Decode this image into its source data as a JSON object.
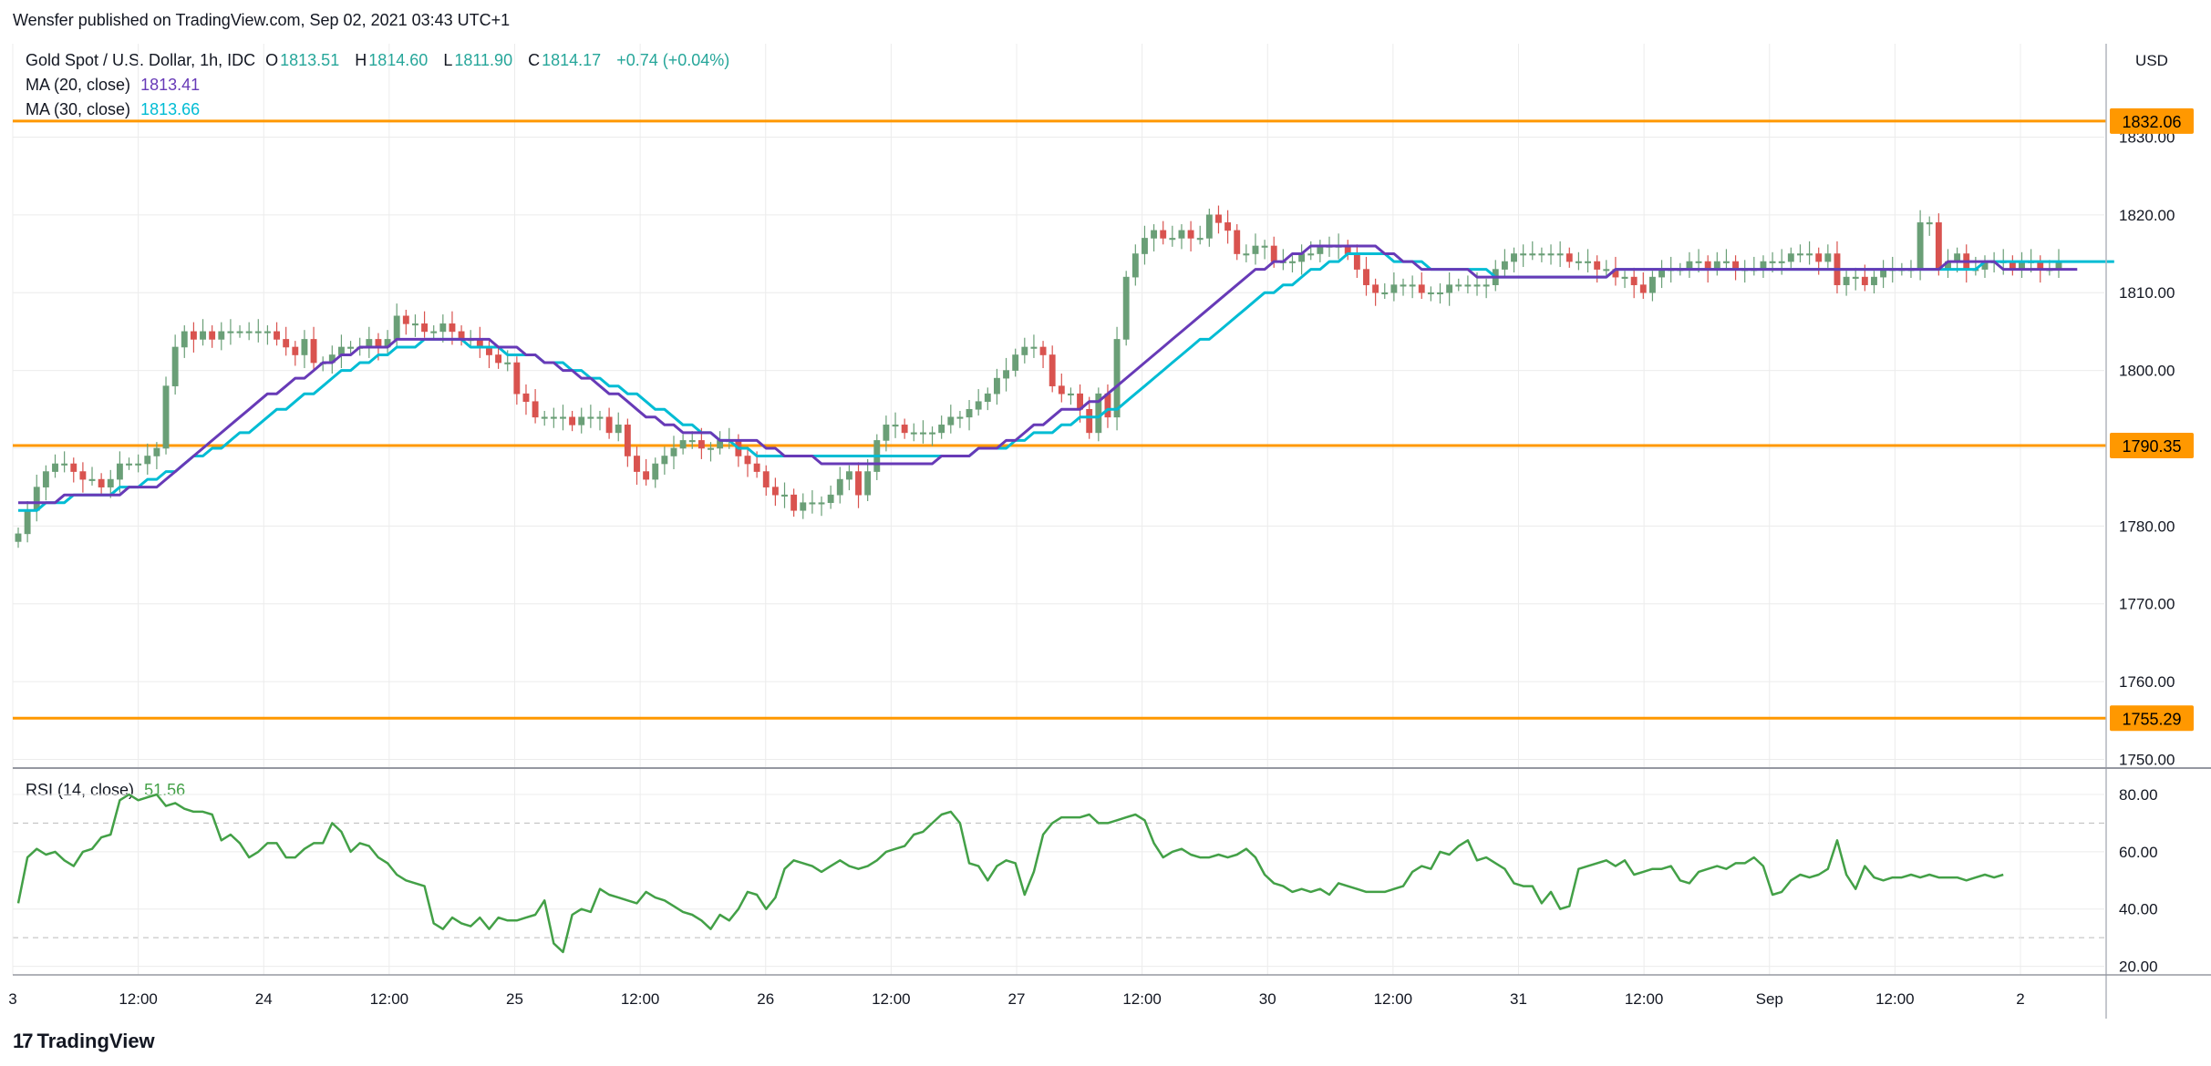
{
  "credit": "Wensfer published on TradingView.com, Sep 02, 2021 03:43 UTC+1",
  "brand": "TradingView",
  "legend": {
    "symbol": "Gold Spot / U.S. Dollar, 1h, IDC",
    "open_label": "O",
    "open": "1813.51",
    "high_label": "H",
    "high": "1814.60",
    "low_label": "L",
    "low": "1811.90",
    "close_label": "C",
    "close": "1814.17",
    "change": "+0.74 (+0.04%)",
    "ma20_label": "MA (20, close)",
    "ma20_value": "1813.41",
    "ma30_label": "MA (30, close)",
    "ma30_value": "1813.66",
    "rsi_label": "RSI (14, close)",
    "rsi_value": "51.56"
  },
  "colors": {
    "up": "#6a9f77",
    "down": "#d9534f",
    "ma20": "#673ab7",
    "ma30": "#00bcd4",
    "rsi": "#43a047",
    "level": "#ff9800",
    "grid": "#ececec",
    "legend_green": "#26a69a"
  },
  "chart_data": [
    {
      "type": "candlestick",
      "currency": "USD",
      "y_ticks": [
        "1830.00",
        "1820.00",
        "1810.00",
        "1800.00",
        "1790.00",
        "1780.00",
        "1770.00",
        "1760.00",
        "1750.00"
      ],
      "y_tick_values": [
        1830,
        1820,
        1810,
        1800,
        1790,
        1780,
        1770,
        1760,
        1750
      ],
      "ylim": [
        1749,
        1842
      ],
      "x_ticks": [
        "3",
        "12:00",
        "24",
        "12:00",
        "25",
        "12:00",
        "26",
        "12:00",
        "27",
        "12:00",
        "30",
        "12:00",
        "31",
        "12:00",
        "Sep",
        "12:00",
        "2"
      ],
      "horizontal_levels": [
        {
          "label": "1832.06",
          "value": 1832.06
        },
        {
          "label": "1790.35",
          "value": 1790.35
        },
        {
          "label": "1755.29",
          "value": 1755.29
        }
      ],
      "closes": [
        1779,
        1782,
        1785,
        1787,
        1788,
        1788,
        1787,
        1786,
        1786,
        1785,
        1786,
        1788,
        1788,
        1788,
        1789,
        1790,
        1798,
        1803,
        1805,
        1804,
        1805,
        1804,
        1805,
        1805,
        1805,
        1805,
        1805,
        1805,
        1804,
        1803,
        1802,
        1804,
        1801,
        1801,
        1802,
        1803,
        1803,
        1803,
        1804,
        1803,
        1804,
        1807,
        1806,
        1806,
        1805,
        1805,
        1806,
        1805,
        1804,
        1804,
        1803,
        1802,
        1801,
        1801,
        1797,
        1796,
        1794,
        1794,
        1794,
        1794,
        1793,
        1794,
        1794,
        1794,
        1792,
        1793,
        1789,
        1787,
        1786,
        1788,
        1789,
        1790,
        1791,
        1791,
        1790,
        1790,
        1791,
        1791,
        1789,
        1788,
        1787,
        1785,
        1784,
        1784,
        1782,
        1783,
        1783,
        1783,
        1784,
        1786,
        1787,
        1784,
        1787,
        1791,
        1793,
        1793,
        1792,
        1792,
        1792,
        1792,
        1793,
        1794,
        1794,
        1795,
        1796,
        1797,
        1799,
        1800,
        1802,
        1803,
        1803,
        1802,
        1798,
        1797,
        1797,
        1795,
        1792,
        1797,
        1794,
        1804,
        1812,
        1815,
        1817,
        1818,
        1817,
        1817,
        1818,
        1817,
        1817,
        1820,
        1819,
        1818,
        1815,
        1815,
        1816,
        1816,
        1814,
        1814,
        1814,
        1815,
        1815,
        1816,
        1816,
        1816,
        1815,
        1813,
        1811,
        1810,
        1810,
        1811,
        1811,
        1811,
        1810,
        1810,
        1810,
        1811,
        1811,
        1811,
        1811,
        1811,
        1813,
        1814,
        1815,
        1815,
        1815,
        1815,
        1815,
        1815,
        1814,
        1814,
        1814,
        1813,
        1813,
        1812,
        1812,
        1811,
        1810,
        1812,
        1813,
        1813,
        1813,
        1814,
        1814,
        1813,
        1814,
        1814,
        1813,
        1813,
        1813,
        1814,
        1814,
        1814,
        1815,
        1815,
        1815,
        1814,
        1815,
        1811,
        1812,
        1812,
        1811,
        1812,
        1813,
        1813,
        1813,
        1813,
        1819,
        1819,
        1813,
        1814,
        1815,
        1813,
        1813,
        1814,
        1814,
        1814,
        1813,
        1814,
        1814,
        1813,
        1813,
        1814
      ],
      "ma20": [
        1783,
        1783,
        1783,
        1783,
        1783,
        1784,
        1784,
        1784,
        1784,
        1784,
        1784,
        1784,
        1785,
        1785,
        1785,
        1785,
        1786,
        1787,
        1788,
        1789,
        1790,
        1791,
        1792,
        1793,
        1794,
        1795,
        1796,
        1797,
        1797,
        1798,
        1799,
        1799,
        1800,
        1801,
        1801,
        1802,
        1802,
        1803,
        1803,
        1803,
        1803,
        1804,
        1804,
        1804,
        1804,
        1804,
        1804,
        1804,
        1804,
        1804,
        1804,
        1804,
        1803,
        1803,
        1803,
        1802,
        1802,
        1801,
        1801,
        1800,
        1800,
        1799,
        1799,
        1798,
        1797,
        1797,
        1796,
        1795,
        1794,
        1794,
        1793,
        1793,
        1792,
        1792,
        1792,
        1792,
        1791,
        1791,
        1791,
        1791,
        1791,
        1790,
        1790,
        1789,
        1789,
        1789,
        1789,
        1788,
        1788,
        1788,
        1788,
        1788,
        1788,
        1788,
        1788,
        1788,
        1788,
        1788,
        1788,
        1788,
        1789,
        1789,
        1789,
        1789,
        1790,
        1790,
        1790,
        1791,
        1791,
        1792,
        1793,
        1793,
        1794,
        1795,
        1795,
        1795,
        1796,
        1796,
        1797,
        1798,
        1799,
        1800,
        1801,
        1802,
        1803,
        1804,
        1805,
        1806,
        1807,
        1808,
        1809,
        1810,
        1811,
        1812,
        1813,
        1813,
        1814,
        1814,
        1815,
        1815,
        1816,
        1816,
        1816,
        1816,
        1816,
        1816,
        1816,
        1816,
        1815,
        1815,
        1814,
        1814,
        1813,
        1813,
        1813,
        1813,
        1813,
        1813,
        1812,
        1812,
        1812,
        1812,
        1812,
        1812,
        1812,
        1812,
        1812,
        1812,
        1812,
        1812,
        1812,
        1812,
        1812,
        1813,
        1813,
        1813,
        1813,
        1813,
        1813,
        1813,
        1813,
        1813,
        1813,
        1813,
        1813,
        1813,
        1813,
        1813,
        1813,
        1813,
        1813,
        1813,
        1813,
        1813,
        1813,
        1813,
        1813,
        1813,
        1813,
        1813,
        1813,
        1813,
        1813,
        1813,
        1813,
        1813,
        1813,
        1813,
        1813,
        1814,
        1814,
        1814,
        1814,
        1814,
        1814,
        1813,
        1813,
        1813,
        1813,
        1813,
        1813,
        1813,
        1813,
        1813
      ],
      "ma30": [
        1782,
        1782,
        1782,
        1783,
        1783,
        1783,
        1784,
        1784,
        1784,
        1784,
        1784,
        1785,
        1785,
        1785,
        1786,
        1786,
        1787,
        1787,
        1788,
        1789,
        1789,
        1790,
        1790,
        1791,
        1792,
        1792,
        1793,
        1794,
        1795,
        1795,
        1796,
        1797,
        1797,
        1798,
        1799,
        1800,
        1800,
        1801,
        1801,
        1802,
        1802,
        1803,
        1803,
        1803,
        1804,
        1804,
        1804,
        1804,
        1804,
        1803,
        1803,
        1803,
        1803,
        1802,
        1802,
        1802,
        1802,
        1801,
        1801,
        1801,
        1800,
        1800,
        1799,
        1799,
        1798,
        1798,
        1797,
        1797,
        1796,
        1795,
        1795,
        1794,
        1793,
        1793,
        1792,
        1792,
        1791,
        1791,
        1790,
        1790,
        1789,
        1789,
        1789,
        1789,
        1789,
        1789,
        1789,
        1789,
        1789,
        1789,
        1789,
        1789,
        1789,
        1789,
        1789,
        1789,
        1789,
        1789,
        1789,
        1789,
        1789,
        1789,
        1789,
        1789,
        1790,
        1790,
        1790,
        1790,
        1791,
        1791,
        1792,
        1792,
        1792,
        1793,
        1793,
        1794,
        1794,
        1794,
        1795,
        1795,
        1796,
        1797,
        1798,
        1799,
        1800,
        1801,
        1802,
        1803,
        1804,
        1804,
        1805,
        1806,
        1807,
        1808,
        1809,
        1810,
        1810,
        1811,
        1811,
        1812,
        1813,
        1813,
        1814,
        1814,
        1815,
        1815,
        1815,
        1815,
        1815,
        1814,
        1814,
        1814,
        1814,
        1813,
        1813,
        1813,
        1813,
        1813,
        1813,
        1813,
        1812,
        1812,
        1812,
        1812,
        1812,
        1812,
        1812,
        1812,
        1812,
        1812,
        1812,
        1812,
        1812,
        1813,
        1813,
        1813,
        1813,
        1813,
        1813,
        1813,
        1813,
        1813,
        1813,
        1813,
        1813,
        1813,
        1813,
        1813,
        1813,
        1813,
        1813,
        1813,
        1813,
        1813,
        1813,
        1813,
        1813,
        1813,
        1813,
        1813,
        1813,
        1813,
        1813,
        1813,
        1813,
        1813,
        1813,
        1813,
        1813,
        1813,
        1813,
        1813,
        1813,
        1814,
        1814,
        1814,
        1814,
        1814,
        1814,
        1814,
        1814,
        1814,
        1814,
        1814,
        1814,
        1814,
        1814,
        1814
      ]
    },
    {
      "type": "line",
      "series_name": "RSI (14, close)",
      "y_ticks": [
        "80.00",
        "60.00",
        "40.00",
        "20.00"
      ],
      "y_tick_values": [
        80,
        60,
        40,
        20
      ],
      "ylim": [
        17,
        87
      ],
      "bands": [
        70,
        30
      ],
      "values": [
        42,
        58,
        61,
        59,
        60,
        57,
        55,
        60,
        61,
        65,
        66,
        78,
        80,
        78,
        79,
        80,
        76,
        77,
        75,
        74,
        74,
        73,
        64,
        66,
        63,
        58,
        60,
        63,
        63,
        58,
        58,
        61,
        63,
        63,
        70,
        67,
        60,
        63,
        62,
        58,
        56,
        52,
        50,
        49,
        48,
        35,
        33,
        37,
        35,
        34,
        37,
        33,
        37,
        36,
        36,
        37,
        38,
        43,
        28,
        25,
        38,
        40,
        39,
        47,
        45,
        44,
        43,
        42,
        46,
        44,
        43,
        41,
        39,
        38,
        36,
        33,
        38,
        36,
        40,
        46,
        45,
        40,
        44,
        54,
        57,
        56,
        55,
        53,
        55,
        57,
        55,
        54,
        55,
        57,
        60,
        61,
        62,
        66,
        67,
        70,
        73,
        74,
        70,
        56,
        55,
        50,
        55,
        57,
        56,
        45,
        53,
        66,
        70,
        72,
        72,
        72,
        73,
        70,
        70,
        71,
        72,
        73,
        71,
        63,
        58,
        60,
        61,
        59,
        58,
        58,
        59,
        58,
        59,
        61,
        58,
        52,
        49,
        48,
        46,
        47,
        46,
        47,
        45,
        49,
        48,
        47,
        46,
        46,
        46,
        47,
        48,
        53,
        55,
        54,
        60,
        59,
        62,
        64,
        57,
        58,
        56,
        54,
        49,
        48,
        48,
        42,
        46,
        40,
        41,
        54,
        55,
        56,
        57,
        55,
        57,
        52,
        53,
        54,
        54,
        55,
        50,
        49,
        53,
        54,
        55,
        54,
        56,
        56,
        58,
        55,
        45,
        46,
        50,
        52,
        51,
        52,
        54,
        64,
        52,
        47,
        55,
        51,
        50,
        51,
        51,
        52,
        51,
        52,
        51,
        51,
        51,
        50,
        51,
        52,
        51,
        52
      ]
    }
  ]
}
